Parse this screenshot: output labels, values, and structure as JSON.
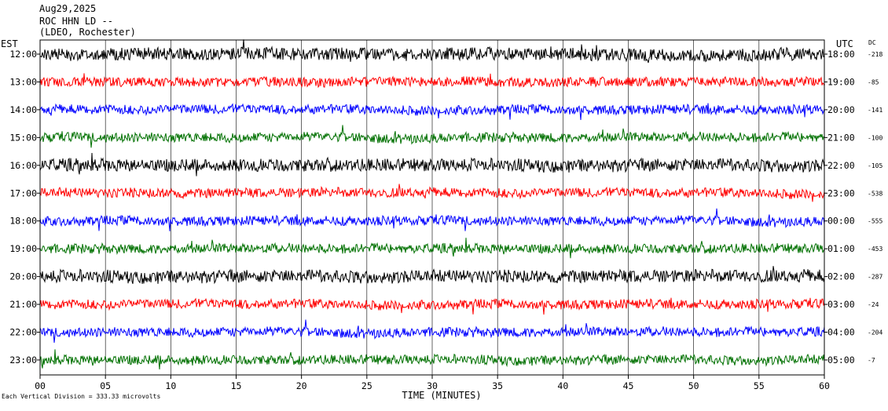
{
  "header": {
    "line1": "Aug29,2025",
    "line2": "ROC HHN LD --",
    "line3": "(LDEO, Rochester)"
  },
  "chart_data": {
    "type": "line",
    "title": "ROC HHN LD --",
    "xlabel": "TIME (MINUTES)",
    "x_ticks": [
      "00",
      "05",
      "10",
      "15",
      "20",
      "25",
      "30",
      "35",
      "40",
      "45",
      "50",
      "55",
      "60"
    ],
    "xlim": [
      0,
      60
    ],
    "left_axis_title": "EST",
    "right_axis_title": "UTC",
    "dc_title": "DC",
    "left_labels": [
      "12:00",
      "13:00",
      "14:00",
      "15:00",
      "16:00",
      "17:00",
      "18:00",
      "19:00",
      "20:00",
      "21:00",
      "22:00",
      "23:00"
    ],
    "right_labels": [
      "18:00",
      "19:00",
      "20:00",
      "21:00",
      "22:00",
      "23:00",
      "00:00",
      "01:00",
      "02:00",
      "03:00",
      "04:00",
      "05:00"
    ],
    "dc_offsets": [
      "-218",
      "-85",
      "-141",
      "-100",
      "-105",
      "-538",
      "-555",
      "-453",
      "-287",
      "-24",
      "-204",
      "-7"
    ],
    "series_colors": [
      "#000000",
      "#ff0000",
      "#0000ff",
      "#007000"
    ],
    "footer": "Each Vertical Division =  333.33 microvolts",
    "grid": "vertical lines every 5 minutes"
  }
}
